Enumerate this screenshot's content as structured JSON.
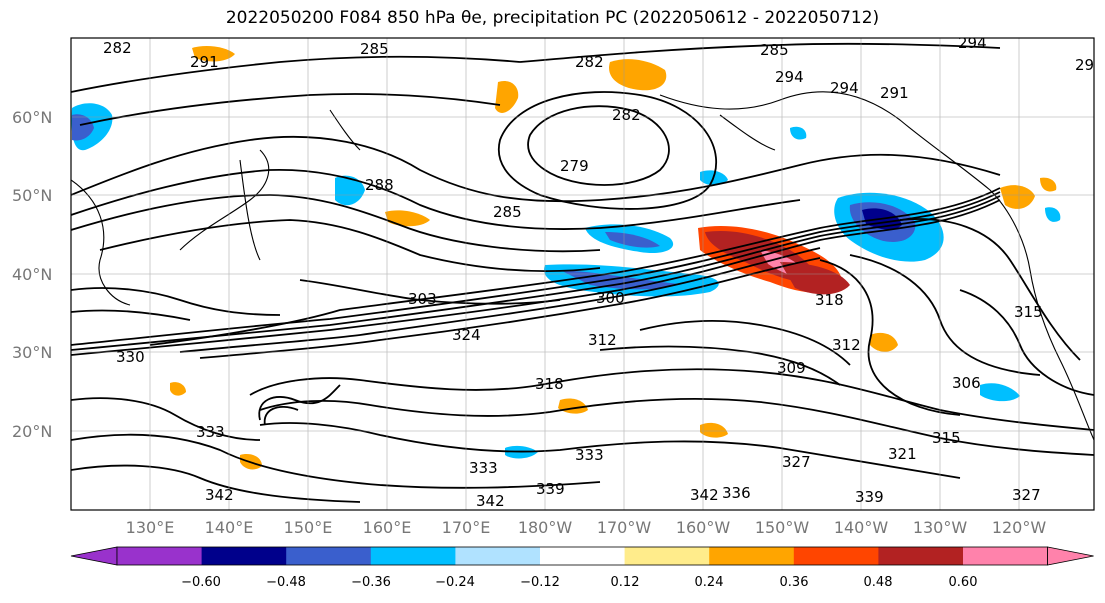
{
  "title": "2022050200 F084 850 hPa θe, precipitation PC (2022050612 - 2022050712)",
  "map": {
    "lat_labels": [
      "60°N",
      "50°N",
      "40°N",
      "30°N",
      "20°N"
    ],
    "lon_labels": [
      "130°E",
      "140°E",
      "150°E",
      "160°E",
      "170°E",
      "180°W",
      "170°W",
      "160°W",
      "150°W",
      "140°W",
      "130°W",
      "120°W"
    ],
    "contour_labels": [
      {
        "text": "282"
      },
      {
        "text": "291"
      },
      {
        "text": "285"
      },
      {
        "text": "282"
      },
      {
        "text": "285"
      },
      {
        "text": "294"
      },
      {
        "text": "29"
      },
      {
        "text": "294"
      },
      {
        "text": "291"
      },
      {
        "text": "294"
      },
      {
        "text": "282"
      },
      {
        "text": "279"
      },
      {
        "text": "288"
      },
      {
        "text": "285"
      },
      {
        "text": "303"
      },
      {
        "text": "300"
      },
      {
        "text": "312"
      },
      {
        "text": "309"
      },
      {
        "text": "312"
      },
      {
        "text": "318"
      },
      {
        "text": "315"
      },
      {
        "text": "306"
      },
      {
        "text": "318"
      },
      {
        "text": "330"
      },
      {
        "text": "333"
      },
      {
        "text": "333"
      },
      {
        "text": "333"
      },
      {
        "text": "339"
      },
      {
        "text": "342"
      },
      {
        "text": "342"
      },
      {
        "text": "342"
      },
      {
        "text": "336"
      },
      {
        "text": "339"
      },
      {
        "text": "327"
      },
      {
        "text": "321"
      },
      {
        "text": "315"
      },
      {
        "text": "324"
      },
      {
        "text": "327"
      }
    ]
  },
  "colorbar": {
    "colors": [
      "#9932cc",
      "#00008b",
      "#3a5fcd",
      "#00bfff",
      "#b0e2ff",
      "#ffffff",
      "#ffec8b",
      "#ffa500",
      "#ff4500",
      "#b22222",
      "#ff82ab"
    ],
    "tick_labels": [
      "−0.60",
      "−0.48",
      "−0.36",
      "−0.24",
      "−0.12",
      "0.12",
      "0.24",
      "0.36",
      "0.48",
      "0.60"
    ]
  }
}
